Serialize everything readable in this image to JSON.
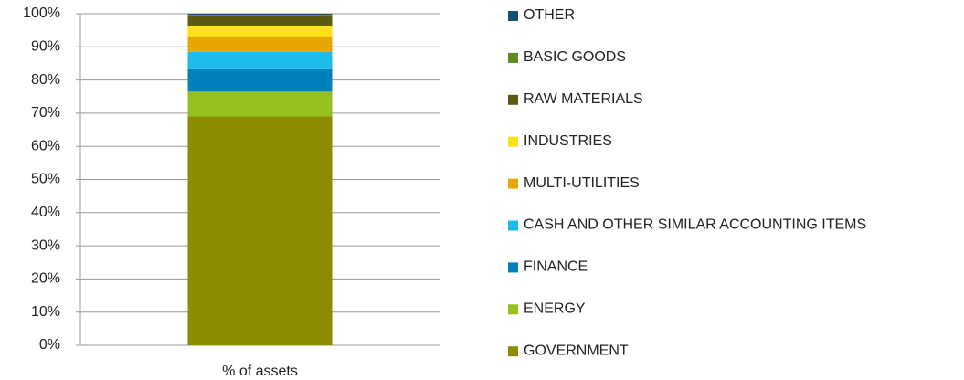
{
  "chart_data": {
    "type": "stacked_bar",
    "categories": [
      "% of assets"
    ],
    "series": [
      {
        "name": "GOVERNMENT",
        "color": "#8b8c00",
        "values": [
          69
        ]
      },
      {
        "name": "ENERGY",
        "color": "#95c11f",
        "values": [
          7.5
        ]
      },
      {
        "name": "FINANCE",
        "color": "#0081bc",
        "values": [
          7
        ]
      },
      {
        "name": "CASH AND OTHER SIMILAR ACCOUNTING ITEMS",
        "color": "#1fbbea",
        "values": [
          5
        ]
      },
      {
        "name": "MULTI-UTILITIES",
        "color": "#e6a800",
        "values": [
          4.7
        ]
      },
      {
        "name": "INDUSTRIES",
        "color": "#ffe11a",
        "values": [
          3
        ]
      },
      {
        "name": "RAW MATERIALS",
        "color": "#5a5a12",
        "values": [
          3
        ]
      },
      {
        "name": "BASIC GOODS",
        "color": "#5e8c1e",
        "values": [
          0.5
        ]
      },
      {
        "name": "OTHER",
        "color": "#14506e",
        "values": [
          0.3
        ]
      }
    ],
    "ylim": [
      0,
      100
    ],
    "yticks": [
      {
        "value": 0,
        "label": "0%"
      },
      {
        "value": 10,
        "label": "10%"
      },
      {
        "value": 20,
        "label": "20%"
      },
      {
        "value": 30,
        "label": "30%"
      },
      {
        "value": 40,
        "label": "40%"
      },
      {
        "value": 50,
        "label": "50%"
      },
      {
        "value": 60,
        "label": "60%"
      },
      {
        "value": 70,
        "label": "70%"
      },
      {
        "value": 80,
        "label": "80%"
      },
      {
        "value": 90,
        "label": "90%"
      },
      {
        "value": 100,
        "label": "100%"
      }
    ],
    "grid": true,
    "legend": "right"
  }
}
